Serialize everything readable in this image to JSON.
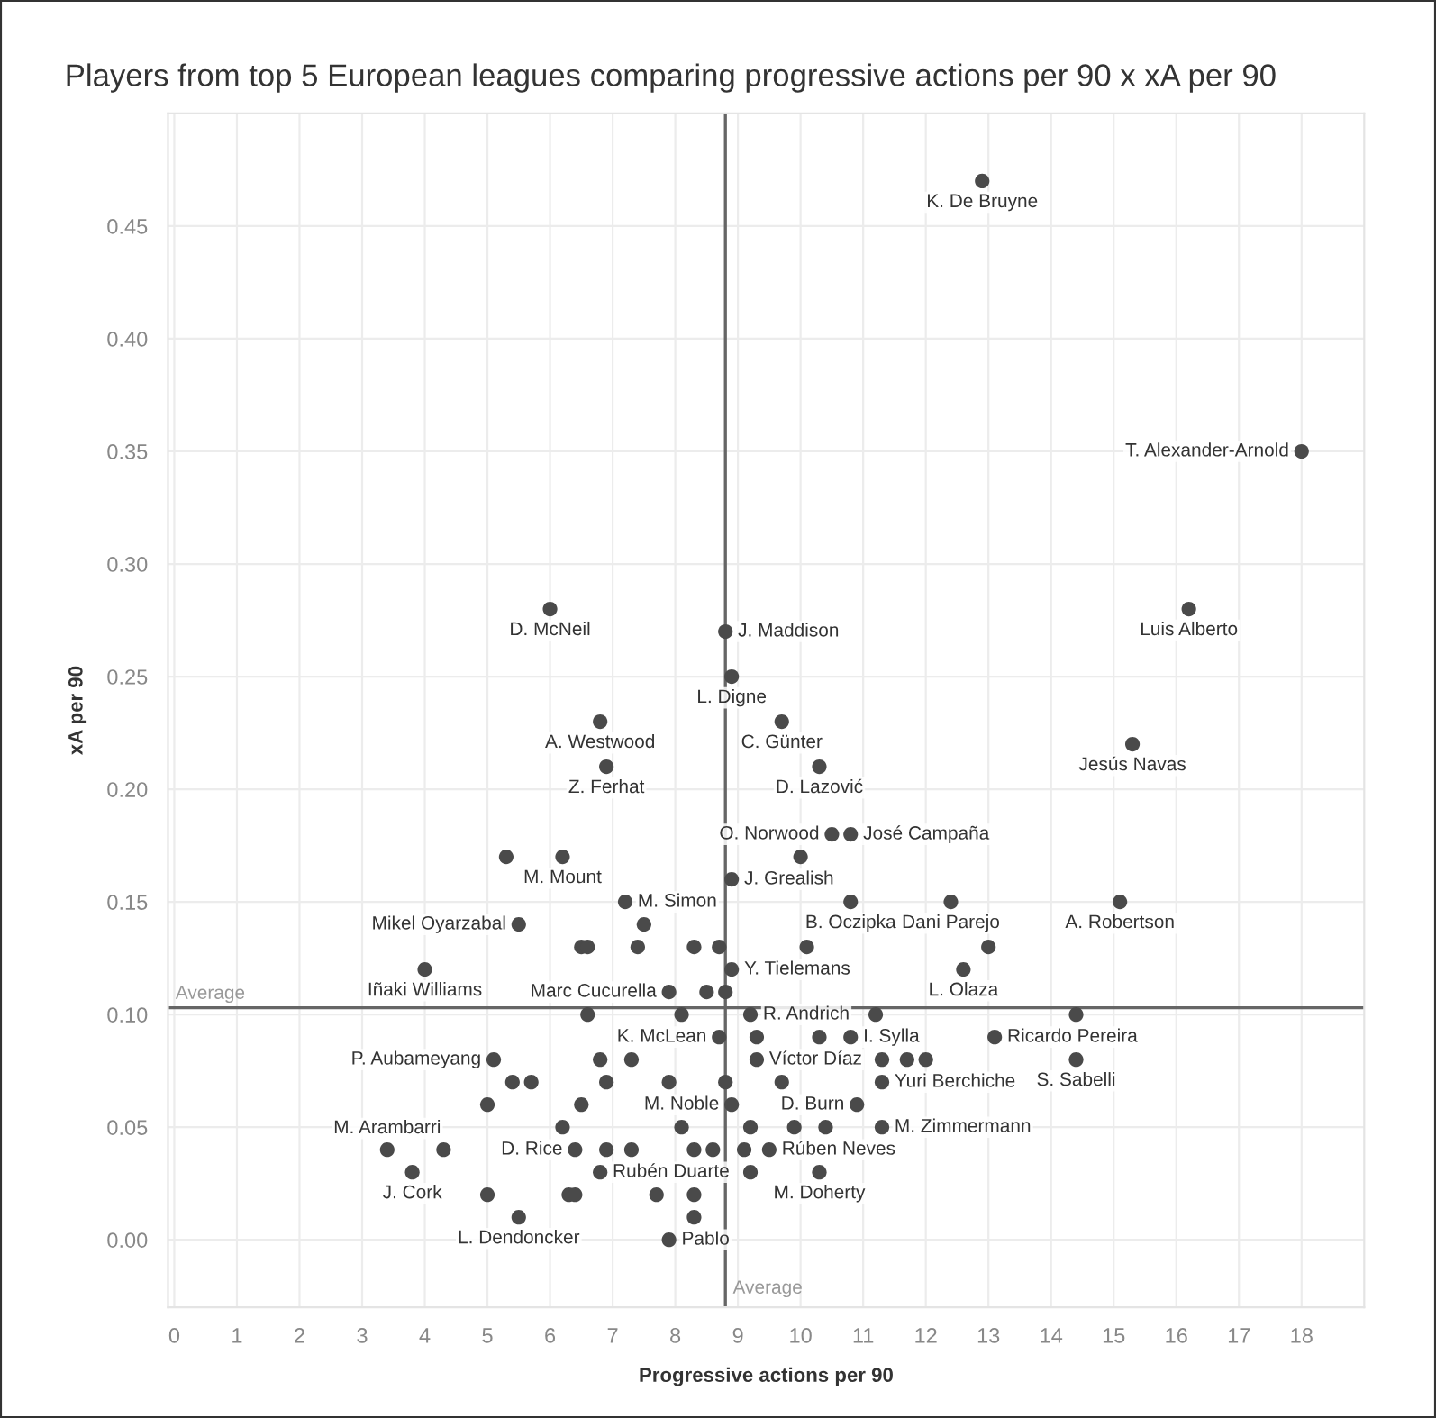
{
  "chart_data": {
    "type": "scatter",
    "title": "Players from top 5 European leagues comparing progressive actions per 90 x xA per 90",
    "xlabel": "Progressive actions per 90",
    "ylabel": "xA per 90",
    "series": [
      {
        "color": "#4a4a4a",
        "x": [
          12.9,
          18.0,
          6.0,
          16.2,
          8.8,
          8.9,
          6.8,
          9.7,
          15.3,
          6.9,
          10.3,
          10.5,
          10.8,
          5.3,
          6.2,
          10.0,
          8.9,
          7.2,
          10.8,
          12.4,
          15.1,
          5.5,
          7.5,
          6.5,
          6.6,
          7.4,
          8.3,
          8.7,
          10.1,
          13.0,
          4.0,
          8.9,
          12.6,
          7.9,
          8.5,
          8.8,
          6.6,
          8.1,
          9.2,
          11.2,
          14.4,
          8.7,
          9.3,
          10.3,
          10.8,
          13.1,
          5.1,
          6.8,
          7.3,
          9.3,
          11.3,
          11.7,
          12.0,
          14.4,
          5.4,
          5.7,
          6.9,
          7.9,
          8.8,
          9.7,
          11.3,
          5.0,
          6.5,
          8.9,
          10.9,
          6.2,
          8.1,
          9.2,
          9.9,
          10.4,
          11.3,
          3.4,
          4.3,
          6.4,
          6.9,
          7.3,
          8.3,
          8.6,
          9.1,
          9.5,
          3.8,
          6.8,
          9.2,
          10.3,
          5.0,
          6.3,
          6.4,
          7.7,
          8.3,
          5.5,
          8.3,
          7.9
        ],
        "values": [
          0.47,
          0.35,
          0.28,
          0.28,
          0.27,
          0.25,
          0.23,
          0.23,
          0.22,
          0.21,
          0.21,
          0.18,
          0.18,
          0.17,
          0.17,
          0.17,
          0.16,
          0.15,
          0.15,
          0.15,
          0.15,
          0.14,
          0.14,
          0.13,
          0.13,
          0.13,
          0.13,
          0.13,
          0.13,
          0.13,
          0.12,
          0.12,
          0.12,
          0.11,
          0.11,
          0.11,
          0.1,
          0.1,
          0.1,
          0.1,
          0.1,
          0.09,
          0.09,
          0.09,
          0.09,
          0.09,
          0.08,
          0.08,
          0.08,
          0.08,
          0.08,
          0.08,
          0.08,
          0.08,
          0.07,
          0.07,
          0.07,
          0.07,
          0.07,
          0.07,
          0.07,
          0.06,
          0.06,
          0.06,
          0.06,
          0.05,
          0.05,
          0.05,
          0.05,
          0.05,
          0.05,
          0.04,
          0.04,
          0.04,
          0.04,
          0.04,
          0.04,
          0.04,
          0.04,
          0.04,
          0.03,
          0.03,
          0.03,
          0.03,
          0.02,
          0.02,
          0.02,
          0.02,
          0.02,
          0.01,
          0.01,
          0.0
        ]
      }
    ],
    "annotations": [
      {
        "text": "K. De Bruyne",
        "x": 12.9,
        "y": 0.47
      },
      {
        "text": "T. Alexander-Arnold",
        "x": 18.0,
        "y": 0.35
      },
      {
        "text": "D. McNeil",
        "x": 6.0,
        "y": 0.28
      },
      {
        "text": "Luis Alberto",
        "x": 16.2,
        "y": 0.28
      },
      {
        "text": "J. Maddison",
        "x": 8.8,
        "y": 0.27
      },
      {
        "text": "L. Digne",
        "x": 8.9,
        "y": 0.25
      },
      {
        "text": "A. Westwood",
        "x": 6.8,
        "y": 0.23
      },
      {
        "text": "C. Günter",
        "x": 9.7,
        "y": 0.23
      },
      {
        "text": "Jesús Navas",
        "x": 15.3,
        "y": 0.22
      },
      {
        "text": "Z. Ferhat",
        "x": 6.9,
        "y": 0.21
      },
      {
        "text": "D. Lazović",
        "x": 10.3,
        "y": 0.21
      },
      {
        "text": "O. Norwood",
        "x": 10.5,
        "y": 0.18
      },
      {
        "text": "José Campaña",
        "x": 10.8,
        "y": 0.18
      },
      {
        "text": "M. Mount",
        "x": 6.2,
        "y": 0.17
      },
      {
        "text": "J. Grealish",
        "x": 8.9,
        "y": 0.16
      },
      {
        "text": "M. Simon",
        "x": 7.2,
        "y": 0.15
      },
      {
        "text": "B. Oczipka",
        "x": 10.8,
        "y": 0.15
      },
      {
        "text": "Dani Parejo",
        "x": 12.4,
        "y": 0.15
      },
      {
        "text": "A. Robertson",
        "x": 15.1,
        "y": 0.15
      },
      {
        "text": "Mikel Oyarzabal",
        "x": 5.5,
        "y": 0.14
      },
      {
        "text": "Iñaki Williams",
        "x": 4.0,
        "y": 0.12
      },
      {
        "text": "Y. Tielemans",
        "x": 8.9,
        "y": 0.12
      },
      {
        "text": "L. Olaza",
        "x": 12.6,
        "y": 0.12
      },
      {
        "text": "Marc Cucurella",
        "x": 7.9,
        "y": 0.11
      },
      {
        "text": "R. Andrich",
        "x": 9.2,
        "y": 0.1
      },
      {
        "text": "K. McLean",
        "x": 8.7,
        "y": 0.09
      },
      {
        "text": "I. Sylla",
        "x": 10.8,
        "y": 0.09
      },
      {
        "text": "Ricardo Pereira",
        "x": 13.1,
        "y": 0.09
      },
      {
        "text": "P. Aubameyang",
        "x": 5.1,
        "y": 0.08
      },
      {
        "text": "Víctor Díaz",
        "x": 9.3,
        "y": 0.08
      },
      {
        "text": "S. Sabelli",
        "x": 14.4,
        "y": 0.08
      },
      {
        "text": "Yuri Berchiche",
        "x": 11.3,
        "y": 0.07
      },
      {
        "text": "M. Noble",
        "x": 8.9,
        "y": 0.06
      },
      {
        "text": "D. Burn",
        "x": 10.9,
        "y": 0.06
      },
      {
        "text": "M. Zimmermann",
        "x": 11.3,
        "y": 0.05
      },
      {
        "text": "M. Arambarri",
        "x": 3.4,
        "y": 0.04
      },
      {
        "text": "D. Rice",
        "x": 6.4,
        "y": 0.04
      },
      {
        "text": "Rúben Neves",
        "x": 9.5,
        "y": 0.04
      },
      {
        "text": "J. Cork",
        "x": 3.8,
        "y": 0.03
      },
      {
        "text": "Rubén Duarte",
        "x": 6.8,
        "y": 0.03
      },
      {
        "text": "M. Doherty",
        "x": 10.3,
        "y": 0.03
      },
      {
        "text": "L. Dendoncker",
        "x": 5.5,
        "y": 0.01
      },
      {
        "text": "Pablo",
        "x": 7.9,
        "y": 0.0
      }
    ],
    "ref_lines": [
      {
        "axis": "x",
        "value": 8.8,
        "label": "Average",
        "color": "#666666"
      },
      {
        "axis": "y",
        "value": 0.103,
        "label": "Average",
        "color": "#666666"
      }
    ],
    "xlim": [
      -0.1,
      19.0
    ],
    "ylim": [
      -0.03,
      0.5
    ],
    "xticks": [
      0,
      1,
      2,
      3,
      4,
      5,
      6,
      7,
      8,
      9,
      10,
      11,
      12,
      13,
      14,
      15,
      16,
      17,
      18
    ],
    "yticks": [
      {
        "value": 0,
        "label": "0.00"
      },
      {
        "value": 0.05,
        "label": "0.05"
      },
      {
        "value": 0.1,
        "label": "0.10"
      },
      {
        "value": 0.15,
        "label": "0.15"
      },
      {
        "value": 0.2,
        "label": "0.20"
      },
      {
        "value": 0.25,
        "label": "0.25"
      },
      {
        "value": 0.3,
        "label": "0.30"
      },
      {
        "value": 0.35,
        "label": "0.35"
      },
      {
        "value": 0.4,
        "label": "0.40"
      },
      {
        "value": 0.45,
        "label": "0.45"
      }
    ],
    "grid": true,
    "marker": "circle"
  }
}
